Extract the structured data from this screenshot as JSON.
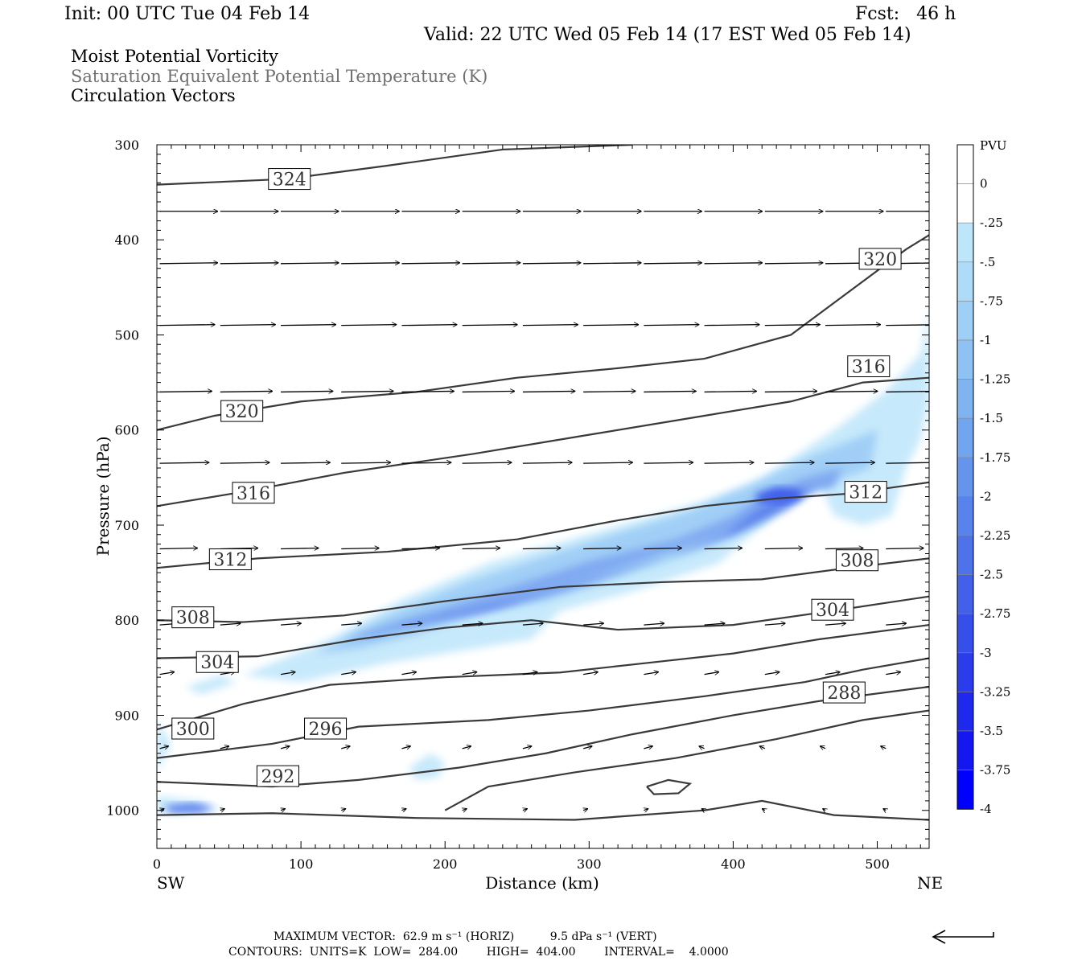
{
  "header": {
    "init": "Init: 00 UTC Tue 04 Feb 14",
    "fcst": "Fcst:   46 h",
    "valid": "Valid: 22 UTC Wed 05 Feb 14 (17 EST Wed 05 Feb 14)",
    "title1": "Moist Potential Vorticity",
    "title2": "Saturation Equivalent Potential Temperature (K)",
    "title3": "Circulation Vectors"
  },
  "footer": {
    "max_vector": "MAXIMUM VECTOR:  62.9 m s⁻¹ (HORIZ)          9.5 dPa s⁻¹ (VERT)",
    "contours": "CONTOURS:  UNITS=K  LOW=  284.00        HIGH=  404.00        INTERVAL=    4.0000"
  },
  "chart_data": {
    "type": "cross-section",
    "xlabel": "Distance (km)",
    "ylabel": "Pressure (hPa)",
    "xlim": [
      0,
      536
    ],
    "ylim": [
      1040,
      300
    ],
    "x_ticks": [
      0,
      100,
      200,
      300,
      400,
      500
    ],
    "y_ticks": [
      300,
      400,
      500,
      600,
      700,
      800,
      900,
      1000
    ],
    "x_end_labels": {
      "left": "SW",
      "right": "NE"
    },
    "colorbar": {
      "unit": "PVU",
      "levels": [
        "0",
        "-.25",
        "-.5",
        "-.75",
        "-1",
        "-1.25",
        "-1.5",
        "-1.75",
        "-2",
        "-2.25",
        "-2.5",
        "-2.75",
        "-3",
        "-3.25",
        "-3.5",
        "-3.75",
        "-4"
      ],
      "colors": [
        "#ffffff",
        "#ffffff",
        "#bde6fb",
        "#aedbf8",
        "#9ecff6",
        "#8fc2f3",
        "#80b4f1",
        "#72a5ef",
        "#6594ed",
        "#5983ec",
        "#4d72ea",
        "#4260e9",
        "#364eea",
        "#2a3ceb",
        "#1f29ed",
        "#1417f0",
        "#0000ff"
      ]
    },
    "theta_contour_labels": [
      {
        "label": "324",
        "x": 92,
        "p": 336
      },
      {
        "label": "320",
        "x": 59,
        "p": 580
      },
      {
        "label": "320",
        "x": 502,
        "p": 420
      },
      {
        "label": "316",
        "x": 67,
        "p": 666
      },
      {
        "label": "316",
        "x": 494,
        "p": 533
      },
      {
        "label": "312",
        "x": 51,
        "p": 736
      },
      {
        "label": "312",
        "x": 492,
        "p": 665
      },
      {
        "label": "308",
        "x": 25,
        "p": 797
      },
      {
        "label": "308",
        "x": 486,
        "p": 737
      },
      {
        "label": "304",
        "x": 42,
        "p": 844
      },
      {
        "label": "304",
        "x": 469,
        "p": 789
      },
      {
        "label": "300",
        "x": 25,
        "p": 914
      },
      {
        "label": "296",
        "x": 117,
        "p": 914
      },
      {
        "label": "292",
        "x": 84,
        "p": 964
      },
      {
        "label": "288",
        "x": 477,
        "p": 876
      }
    ]
  }
}
